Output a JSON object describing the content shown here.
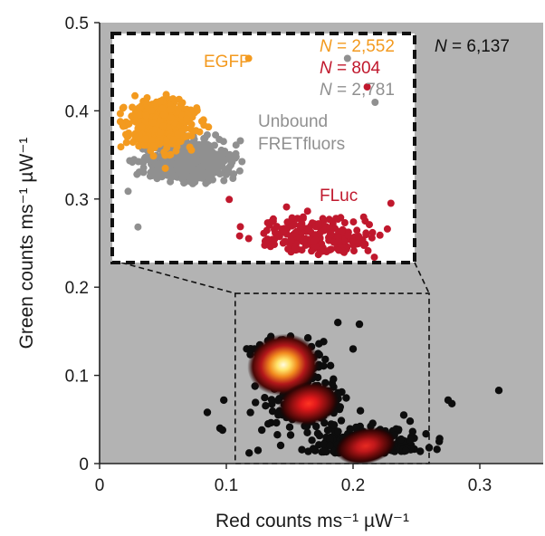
{
  "chart_data": {
    "type": "scatter",
    "title": "",
    "xlabel": "Red counts ms⁻¹ µW⁻¹",
    "ylabel": "Green counts ms⁻¹ µW⁻¹",
    "xlim": [
      0,
      0.35
    ],
    "ylim": [
      0,
      0.5
    ],
    "x_ticks": [
      "0",
      "0.1",
      "0.2",
      "0.3"
    ],
    "y_ticks": [
      "0",
      "0.1",
      "0.2",
      "0.3",
      "0.4",
      "0.5"
    ],
    "total_count_label": "N = 6,137",
    "background_color": "#b3b3b3",
    "density_clusters": [
      {
        "x": 0.145,
        "y": 0.112,
        "peak": "white-yellow"
      },
      {
        "x": 0.165,
        "y": 0.068,
        "peak": "red"
      },
      {
        "x": 0.21,
        "y": 0.02,
        "peak": "red"
      }
    ],
    "zoom_region": {
      "xlim": [
        0.107,
        0.26
      ],
      "ylim": [
        0,
        0.193
      ]
    },
    "inset": {
      "series": [
        {
          "name": "EGFP",
          "count_label": "N = 2,552",
          "color": "#f39a1f",
          "center": [
            0.132,
            0.117
          ],
          "spread": [
            0.008,
            0.01
          ]
        },
        {
          "name": "Unbound FRETfluors",
          "count_label": "N = 2,781",
          "color": "#909090",
          "center": [
            0.145,
            0.085
          ],
          "spread": [
            0.01,
            0.008
          ]
        },
        {
          "name": "FLuc",
          "count_label": "N = 804",
          "color": "#c0182d",
          "center": [
            0.21,
            0.022
          ],
          "spread": [
            0.016,
            0.008
          ]
        }
      ],
      "label_lines": {
        "EGFP": [
          "EGFP"
        ],
        "Unbound FRETfluors": [
          "Unbound",
          "FRETfluors"
        ],
        "FLuc": [
          "FLuc"
        ]
      }
    }
  }
}
